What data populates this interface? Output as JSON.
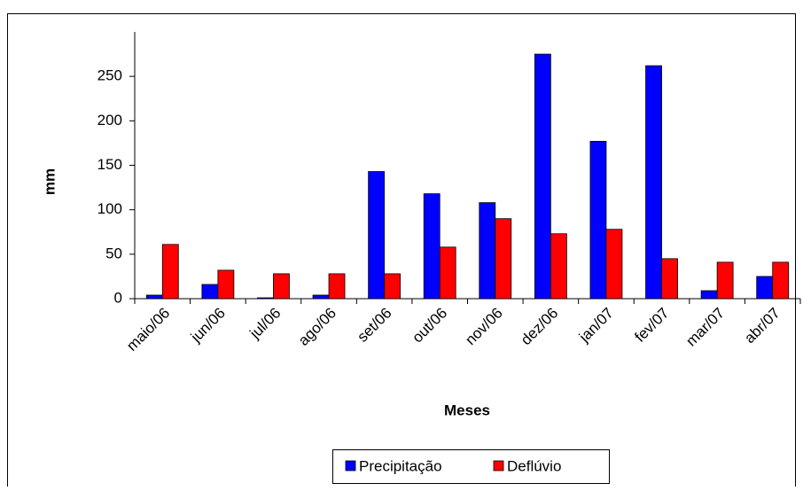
{
  "chart_data": {
    "type": "bar",
    "x_label": "Meses",
    "y_label": "mm",
    "categories": [
      "maio/06",
      "jun/06",
      "jul/06",
      "ago/06",
      "set/06",
      "out/06",
      "nov/06",
      "dez/06",
      "jan/07",
      "fev/07",
      "mar/07",
      "abr/07"
    ],
    "series": [
      {
        "name": "Precipitação",
        "color": "#0000ff",
        "values": [
          4,
          16,
          1,
          4,
          143,
          118,
          108,
          275,
          177,
          262,
          9,
          25
        ]
      },
      {
        "name": "Deflúvio",
        "color": "#ff0000",
        "values": [
          61,
          32,
          28,
          28,
          28,
          58,
          90,
          73,
          78,
          45,
          41,
          41
        ]
      }
    ],
    "ylim": [
      0,
      300
    ],
    "yticks": [
      0,
      50,
      100,
      150,
      200,
      250
    ],
    "grid": false,
    "legend": "bottom"
  }
}
